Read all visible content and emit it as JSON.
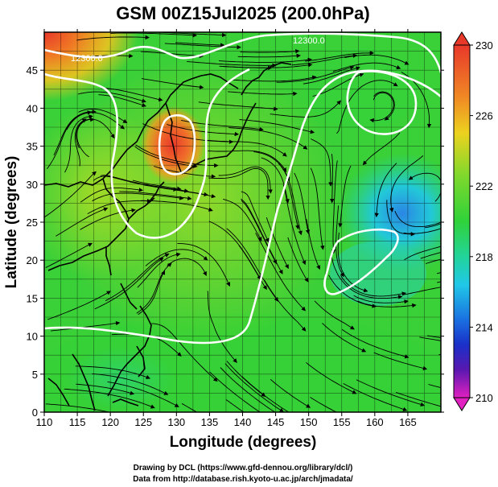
{
  "title": "GSM 00Z15Jul2025 (200.0hPa)",
  "x_axis": {
    "label": "Longitude (degrees)",
    "range": [
      110,
      170
    ],
    "ticks": [
      "110",
      "115",
      "120",
      "125",
      "130",
      "135",
      "140",
      "145",
      "150",
      "155",
      "160",
      "165"
    ]
  },
  "y_axis": {
    "label": "Latitude  (degrees)",
    "range": [
      0,
      50
    ],
    "ticks": [
      "0",
      "5",
      "10",
      "15",
      "20",
      "25",
      "30",
      "35",
      "40",
      "45"
    ]
  },
  "colorbar": {
    "range": [
      210,
      230
    ],
    "labels": [
      "230",
      "226",
      "222",
      "218",
      "214",
      "210"
    ],
    "colors": {
      "top": "#e8382a",
      "orange": "#f5a020",
      "yellow": "#e6e020",
      "green": "#2fd23a",
      "cyan": "#20c8e8",
      "blue": "#1a40d8",
      "navy": "#2018a0",
      "magenta": "#e020c0"
    }
  },
  "contour_labels": [
    {
      "text": "12300.0"
    },
    {
      "text": "12300.0"
    }
  ],
  "credits": {
    "line1": "Drawing by DCL (https://www.gfd-dennou.org/library/dcl/)",
    "line2": "Data from http://database.rish.kyoto-u.ac.jp/arch/jmadata/"
  },
  "map_colors": {
    "background": "#ffffff",
    "coast": "#000000",
    "contour": "#ffffff",
    "streamline": "#000000"
  }
}
